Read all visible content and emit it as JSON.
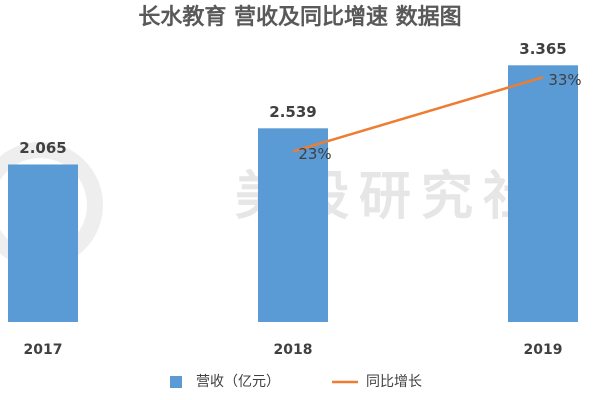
{
  "chart_data": {
    "type": "bar",
    "title": "长水教育 营收及同比增速 数据图",
    "watermark": "美股研究社",
    "categories": [
      "2017",
      "2018",
      "2019"
    ],
    "series": [
      {
        "name": "营收（亿元）",
        "type": "bar",
        "color": "#5b9bd5",
        "values": [
          2.065,
          2.539,
          3.365
        ]
      },
      {
        "name": "同比增长",
        "type": "line",
        "axis": "y2",
        "color": "#ed7d31",
        "values": [
          null,
          23,
          33
        ],
        "value_labels": [
          null,
          "23%",
          "33%"
        ]
      }
    ],
    "ylim": [
      0,
      3.5
    ],
    "y2lim": [
      0,
      36
    ],
    "legend": "bottom"
  }
}
